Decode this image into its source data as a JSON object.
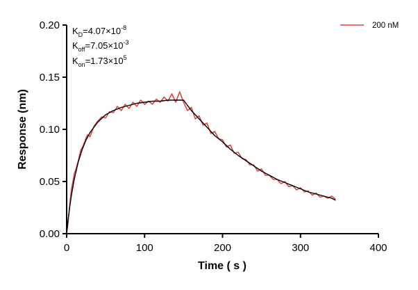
{
  "chart_data": {
    "type": "line",
    "xlabel": "Time ( s )",
    "ylabel": "Response (nm)",
    "xlim": [
      0,
      400
    ],
    "ylim": [
      0,
      0.2
    ],
    "x_ticks": [
      0,
      100,
      200,
      300,
      400
    ],
    "y_ticks": [
      "0.00",
      "0.05",
      "0.10",
      "0.15",
      "0.20"
    ],
    "grid": false,
    "legend_position": "top-right",
    "series": [
      {
        "name": "200 nM",
        "color": "#e0443c",
        "x": [
          0,
          2,
          4,
          6,
          8,
          10,
          12,
          15,
          18,
          21,
          24,
          27,
          30,
          35,
          40,
          45,
          50,
          55,
          60,
          65,
          70,
          75,
          80,
          85,
          90,
          95,
          100,
          105,
          110,
          115,
          120,
          125,
          130,
          135,
          140,
          145,
          150,
          155,
          160,
          165,
          170,
          175,
          180,
          185,
          190,
          195,
          200,
          205,
          210,
          215,
          220,
          225,
          230,
          235,
          240,
          245,
          250,
          255,
          260,
          265,
          270,
          275,
          280,
          285,
          290,
          295,
          300,
          305,
          310,
          315,
          320,
          325,
          330,
          335,
          340,
          345
        ],
        "y": [
          0.0,
          0.012,
          0.028,
          0.042,
          0.05,
          0.058,
          0.062,
          0.07,
          0.08,
          0.084,
          0.09,
          0.095,
          0.093,
          0.103,
          0.108,
          0.112,
          0.111,
          0.117,
          0.116,
          0.122,
          0.118,
          0.124,
          0.12,
          0.126,
          0.122,
          0.128,
          0.124,
          0.127,
          0.124,
          0.129,
          0.126,
          0.131,
          0.127,
          0.134,
          0.126,
          0.136,
          0.126,
          0.118,
          0.121,
          0.11,
          0.113,
          0.104,
          0.106,
          0.096,
          0.098,
          0.091,
          0.09,
          0.083,
          0.085,
          0.077,
          0.078,
          0.072,
          0.071,
          0.066,
          0.066,
          0.06,
          0.062,
          0.056,
          0.056,
          0.052,
          0.052,
          0.048,
          0.05,
          0.045,
          0.046,
          0.042,
          0.044,
          0.04,
          0.041,
          0.037,
          0.039,
          0.035,
          0.036,
          0.034,
          0.036,
          0.033
        ]
      },
      {
        "color": "#000000",
        "fit": true,
        "x": [
          0,
          2,
          4,
          6,
          8,
          10,
          15,
          20,
          25,
          30,
          40,
          50,
          60,
          70,
          80,
          90,
          100,
          110,
          120,
          130,
          140,
          150,
          160,
          170,
          180,
          190,
          200,
          210,
          220,
          230,
          240,
          250,
          260,
          270,
          280,
          290,
          300,
          310,
          320,
          330,
          340,
          345
        ],
        "y": [
          0.0,
          0.014,
          0.026,
          0.036,
          0.045,
          0.053,
          0.069,
          0.081,
          0.09,
          0.097,
          0.107,
          0.114,
          0.118,
          0.121,
          0.123,
          0.125,
          0.126,
          0.127,
          0.127,
          0.128,
          0.128,
          0.128,
          0.118,
          0.11,
          0.102,
          0.094,
          0.088,
          0.081,
          0.075,
          0.07,
          0.065,
          0.06,
          0.056,
          0.052,
          0.049,
          0.046,
          0.043,
          0.04,
          0.038,
          0.036,
          0.034,
          0.032
        ]
      }
    ],
    "annotations": {
      "kd": {
        "main": "K",
        "sub": "D",
        "text": "=4.07×10",
        "exp": "-8"
      },
      "koff": {
        "main": "K",
        "sub": "off",
        "text": "=7.05×10",
        "exp": "-3"
      },
      "kon": {
        "main": "K",
        "sub": "on",
        "text": "=1.73×10",
        "exp": "5"
      }
    }
  }
}
